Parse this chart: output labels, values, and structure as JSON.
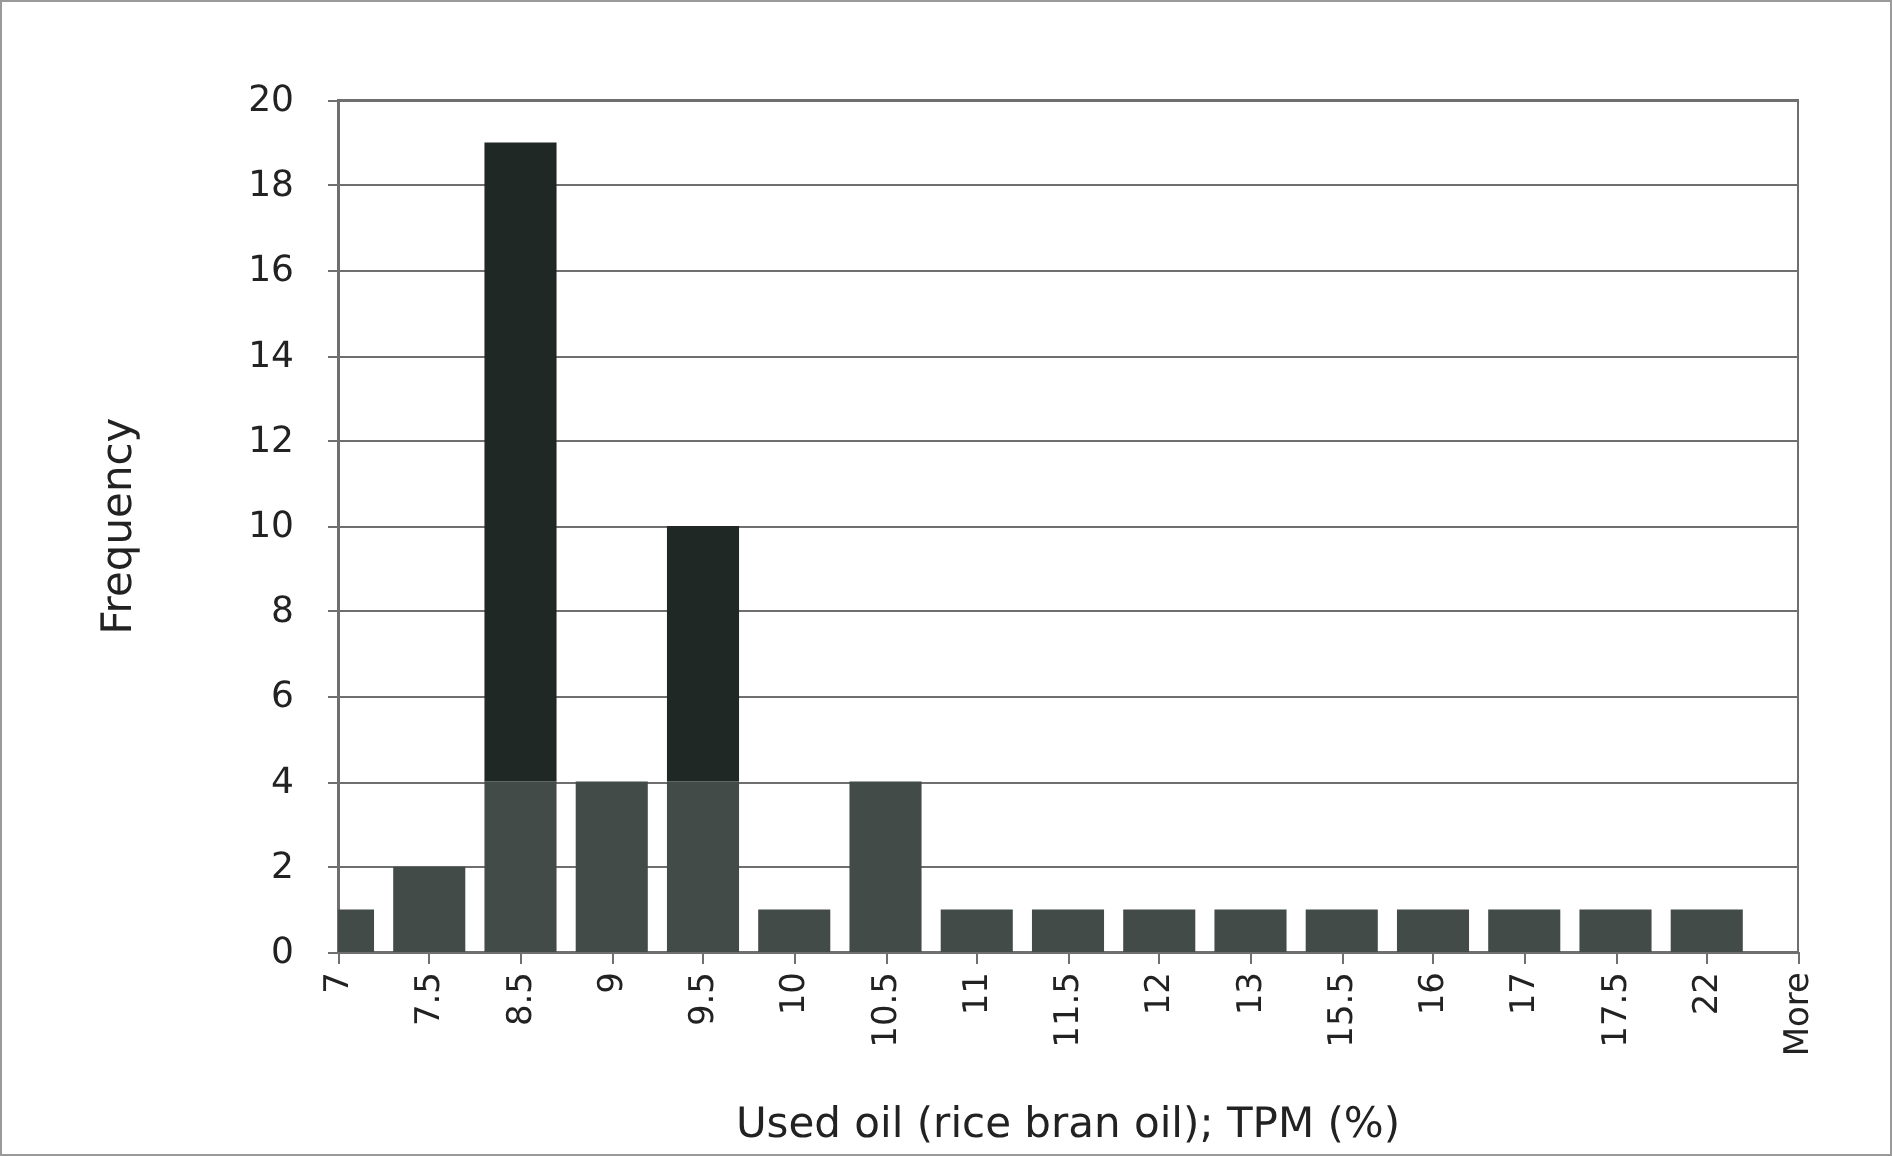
{
  "chart_data": {
    "type": "bar",
    "xlabel": "Used oil (rice bran oil); TPM (%)",
    "ylabel": "Frequency",
    "categories": [
      "7",
      "7.5",
      "8.5",
      "9",
      "9.5",
      "10",
      "10.5",
      "11",
      "11.5",
      "12",
      "13",
      "15.5",
      "16",
      "17",
      "17.5",
      "22",
      "More"
    ],
    "stacked": true,
    "series": [
      {
        "color": "#434b49",
        "values": [
          1,
          2,
          4,
          4,
          4,
          1,
          4,
          1,
          1,
          1,
          1,
          1,
          1,
          1,
          1,
          1,
          0
        ]
      },
      {
        "color": "#1f2825",
        "values": [
          null,
          null,
          15,
          null,
          6,
          null,
          null,
          null,
          null,
          null,
          null,
          null,
          null,
          null,
          null,
          null,
          null
        ]
      }
    ],
    "ylim": [
      0,
      20
    ],
    "yticks": [
      0,
      2,
      4,
      6,
      8,
      10,
      12,
      14,
      16,
      18,
      20
    ],
    "grid": "y"
  }
}
